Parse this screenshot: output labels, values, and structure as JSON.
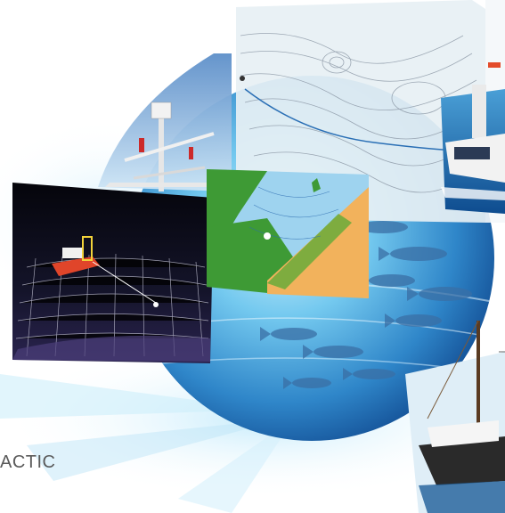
{
  "caption": {
    "text": "ACTIC"
  },
  "colors": {
    "ocean_deep": "#0b3f86",
    "ocean_light": "#74c9ef",
    "sonar_bg": "#0a0a12",
    "chart_land": "#f2b25c",
    "chart_green": "#3e9a35",
    "chart_water": "#9ed3ef",
    "hull_red": "#e0452a",
    "net_white": "#e8e8f0",
    "caption_gray": "#5a5a5a"
  },
  "icons": [
    "sea-globe",
    "nautical-chart",
    "mast-radar",
    "sonar-net-view",
    "coastal-chart",
    "ship",
    "fish-school",
    "sailboat"
  ]
}
